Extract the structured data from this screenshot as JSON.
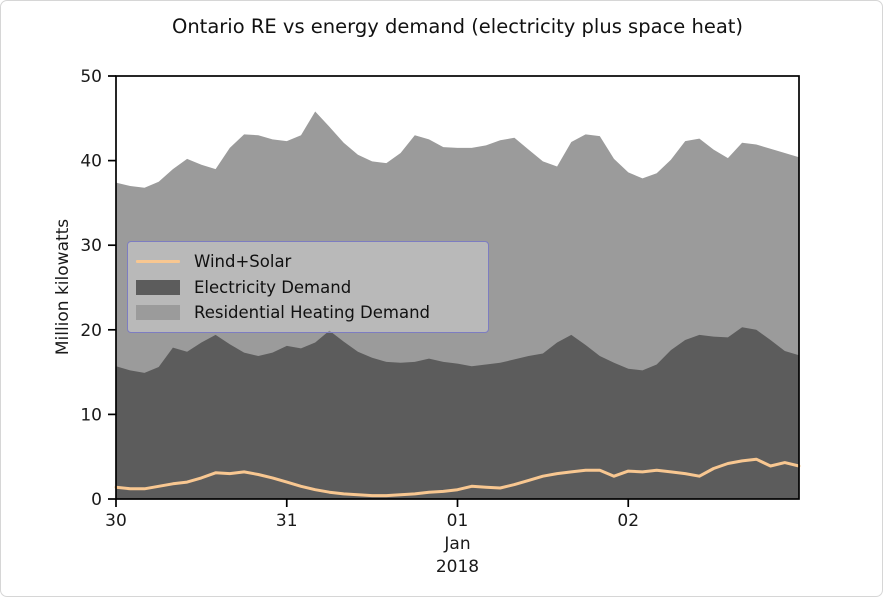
{
  "chart_data": {
    "type": "area",
    "title": "Ontario RE vs energy demand (electricity plus space heat)",
    "ylabel": "Million kilowatts",
    "ylim": [
      0,
      50
    ],
    "y_ticks": [
      0,
      10,
      20,
      30,
      40,
      50
    ],
    "x_hours_span": 96,
    "x_hours_step": 2,
    "x_ticks": [
      {
        "label": "30",
        "hour": 0
      },
      {
        "label": "31",
        "hour": 24
      },
      {
        "label": "01",
        "hour": 48
      },
      {
        "label": "02",
        "hour": 72
      }
    ],
    "x_axis_month": "Jan",
    "x_axis_year": "2018",
    "legend_position": "center-left",
    "grid": false,
    "series": [
      {
        "name": "Wind+Solar",
        "type": "line",
        "color": "#f8c791",
        "values": [
          1.4,
          1.2,
          1.2,
          1.5,
          1.8,
          2.0,
          2.5,
          3.1,
          3.0,
          3.2,
          2.9,
          2.5,
          2.0,
          1.5,
          1.1,
          0.8,
          0.6,
          0.5,
          0.4,
          0.4,
          0.5,
          0.6,
          0.8,
          0.9,
          1.1,
          1.5,
          1.4,
          1.3,
          1.7,
          2.2,
          2.7,
          3.0,
          3.2,
          3.4,
          3.4,
          2.7,
          3.3,
          3.2,
          3.4,
          3.2,
          3.0,
          2.7,
          3.6,
          4.2,
          4.5,
          4.7,
          3.9,
          4.3,
          3.9
        ]
      },
      {
        "name": "Electricity Demand",
        "type": "area",
        "color": "#5c5c5c",
        "values": [
          15.7,
          15.2,
          14.9,
          15.6,
          17.9,
          17.4,
          18.5,
          19.4,
          18.3,
          17.3,
          16.9,
          17.3,
          18.1,
          17.8,
          18.5,
          19.9,
          18.6,
          17.4,
          16.7,
          16.2,
          16.1,
          16.2,
          16.6,
          16.2,
          16.0,
          15.7,
          15.9,
          16.1,
          16.5,
          16.9,
          17.2,
          18.5,
          19.4,
          18.2,
          16.9,
          16.1,
          15.4,
          15.2,
          15.9,
          17.6,
          18.8,
          19.4,
          19.2,
          19.1,
          20.3,
          20.0,
          18.8,
          17.5,
          17.0
        ]
      },
      {
        "name": "Residential Heating Demand",
        "type": "area-stacked",
        "color": "#9b9b9b",
        "values": [
          21.7,
          21.8,
          21.9,
          21.9,
          21.1,
          22.8,
          21.0,
          19.6,
          23.2,
          25.8,
          26.1,
          25.2,
          24.2,
          25.2,
          27.3,
          24.1,
          23.5,
          23.3,
          23.2,
          23.5,
          24.8,
          26.8,
          25.9,
          25.4,
          25.5,
          25.8,
          25.9,
          26.3,
          26.2,
          24.4,
          22.7,
          20.8,
          22.8,
          24.9,
          26.0,
          24.1,
          23.2,
          22.7,
          22.6,
          22.5,
          23.5,
          23.2,
          22.1,
          21.2,
          21.8,
          21.9,
          22.6,
          23.4,
          23.4
        ]
      }
    ],
    "axis_color": "#000000"
  }
}
